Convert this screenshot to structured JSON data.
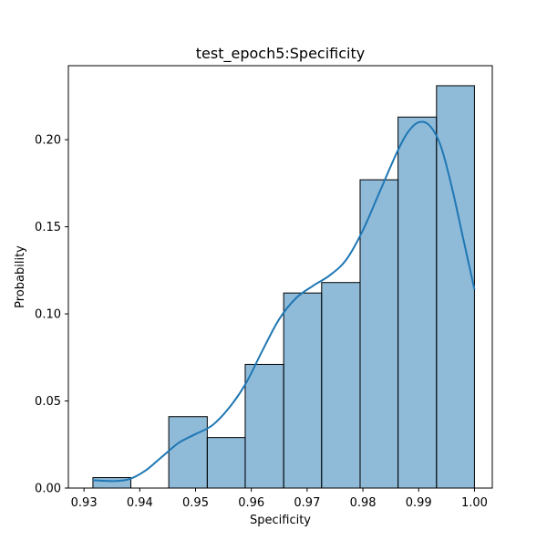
{
  "chart_data": {
    "type": "bar",
    "title": "test_epoch5:Specificity",
    "xlabel": "Specificity",
    "ylabel": "Probability",
    "xlim": [
      0.9272,
      1.0032
    ],
    "ylim": [
      0,
      0.2425
    ],
    "x_ticks": [
      {
        "value": 0.93,
        "label": "0.93"
      },
      {
        "value": 0.94,
        "label": "0.94"
      },
      {
        "value": 0.95,
        "label": "0.95"
      },
      {
        "value": 0.96,
        "label": "0.96"
      },
      {
        "value": 0.97,
        "label": "0.97"
      },
      {
        "value": 0.98,
        "label": "0.98"
      },
      {
        "value": 0.99,
        "label": "0.99"
      },
      {
        "value": 1.0,
        "label": "1.00"
      }
    ],
    "y_ticks": [
      {
        "value": 0.0,
        "label": "0.00"
      },
      {
        "value": 0.05,
        "label": "0.05"
      },
      {
        "value": 0.1,
        "label": "0.10"
      },
      {
        "value": 0.15,
        "label": "0.15"
      },
      {
        "value": 0.2,
        "label": "0.20"
      }
    ],
    "bins": [
      {
        "x0": 0.9316,
        "x1": 0.9384,
        "value": 0.006
      },
      {
        "x0": 0.9384,
        "x1": 0.9452,
        "value": 0.0
      },
      {
        "x0": 0.9452,
        "x1": 0.9521,
        "value": 0.041
      },
      {
        "x0": 0.9521,
        "x1": 0.9589,
        "value": 0.029
      },
      {
        "x0": 0.9589,
        "x1": 0.9658,
        "value": 0.071
      },
      {
        "x0": 0.9658,
        "x1": 0.9726,
        "value": 0.112
      },
      {
        "x0": 0.9726,
        "x1": 0.9795,
        "value": 0.118
      },
      {
        "x0": 0.9795,
        "x1": 0.9863,
        "value": 0.177
      },
      {
        "x0": 0.9863,
        "x1": 0.9932,
        "value": 0.213
      },
      {
        "x0": 0.9932,
        "x1": 1.0,
        "value": 0.231
      }
    ],
    "kde": {
      "x": [
        0.9316,
        0.935,
        0.938,
        0.941,
        0.944,
        0.947,
        0.95,
        0.953,
        0.956,
        0.959,
        0.962,
        0.965,
        0.968,
        0.971,
        0.974,
        0.977,
        0.98,
        0.983,
        0.986,
        0.988,
        0.99,
        0.992,
        0.994,
        0.996,
        0.998,
        1.0
      ],
      "y": [
        0.0045,
        0.004,
        0.005,
        0.01,
        0.018,
        0.026,
        0.031,
        0.036,
        0.046,
        0.06,
        0.079,
        0.097,
        0.109,
        0.116,
        0.122,
        0.131,
        0.148,
        0.17,
        0.192,
        0.204,
        0.21,
        0.208,
        0.196,
        0.172,
        0.143,
        0.114
      ]
    },
    "colors": {
      "bar_fill": "#1f77b4",
      "bar_fill_opacity": "0.5",
      "bar_edge": "#000000",
      "kde_line": "#1f77b4"
    },
    "grid": false,
    "legend": "none"
  }
}
